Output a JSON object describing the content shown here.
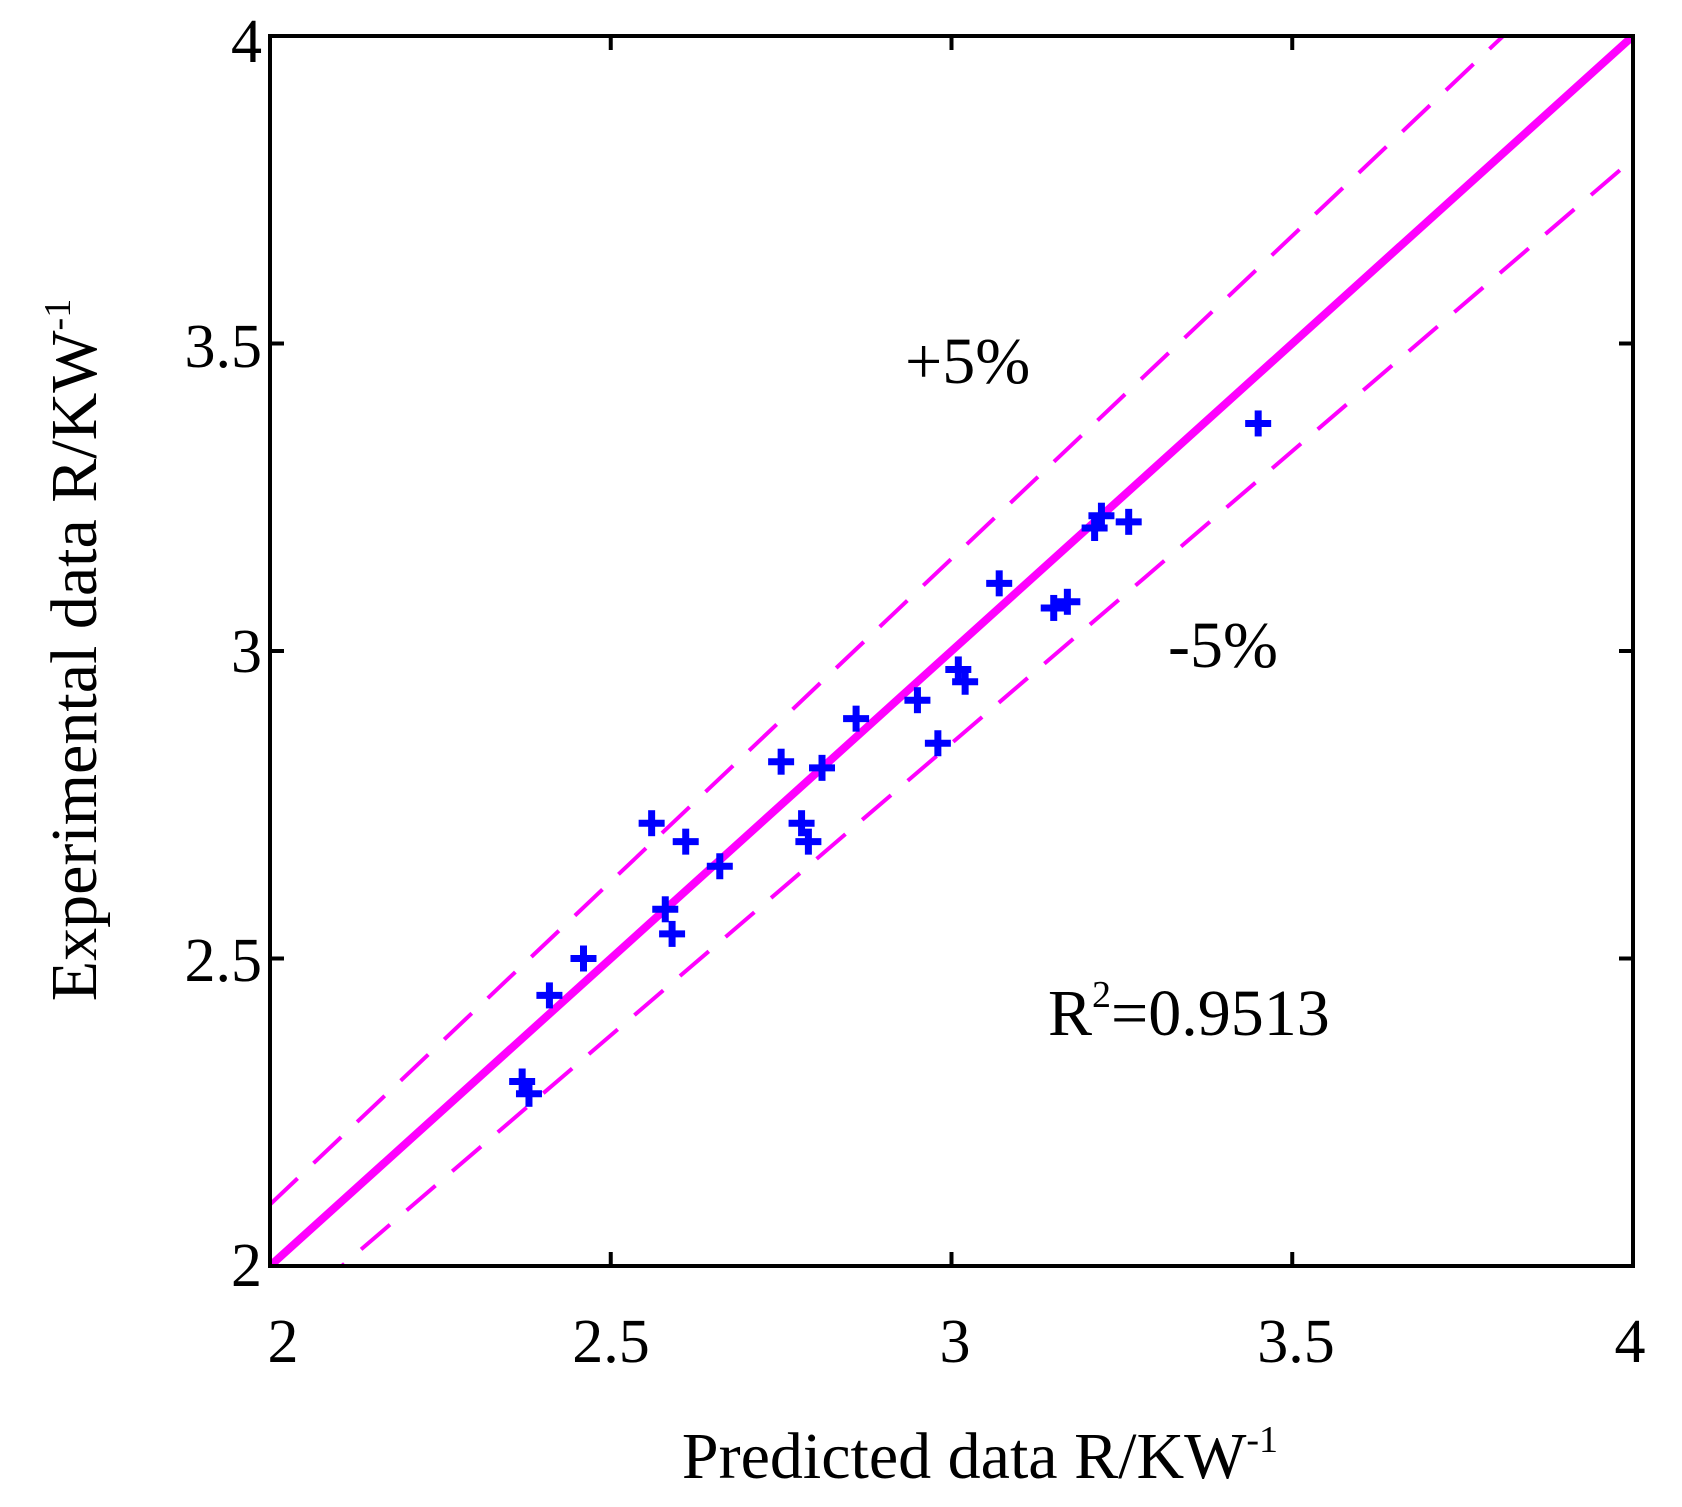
{
  "chart_data": {
    "type": "scatter",
    "title": "",
    "xlabel": {
      "base": "Predicted data R/KW",
      "sup": "-1"
    },
    "ylabel": {
      "base": "Experimental data R/KW",
      "sup": "-1"
    },
    "xlim": [
      2,
      4
    ],
    "ylim": [
      2,
      4
    ],
    "xticks": [
      2,
      2.5,
      3,
      3.5,
      4
    ],
    "yticks": [
      2,
      2.5,
      3,
      3.5,
      4
    ],
    "xtick_labels": [
      "2",
      "2.5",
      "3",
      "3.5",
      "4"
    ],
    "ytick_labels": [
      "2",
      "2.5",
      "3",
      "3.5",
      "4"
    ],
    "grid": false,
    "colors": {
      "points": "#0000ff",
      "lines": "#ff00ff",
      "axes": "#000000"
    },
    "reference_lines": [
      {
        "name": "y = x",
        "slope": 1.0,
        "style": "solid"
      },
      {
        "name": "+5%",
        "slope": 1.05,
        "style": "dashed"
      },
      {
        "name": "-5%",
        "slope": 0.95,
        "style": "dashed"
      }
    ],
    "annotations": {
      "plus5": "+5%",
      "minus5": "-5%",
      "r2_base": "R",
      "r2_sup": "2",
      "r2_value": "=0.9513"
    },
    "series": [
      {
        "name": "data",
        "marker": "+",
        "points": [
          [
            2.37,
            2.3
          ],
          [
            2.38,
            2.28
          ],
          [
            2.41,
            2.44
          ],
          [
            2.46,
            2.5
          ],
          [
            2.56,
            2.72
          ],
          [
            2.58,
            2.58
          ],
          [
            2.59,
            2.54
          ],
          [
            2.61,
            2.69
          ],
          [
            2.66,
            2.65
          ],
          [
            2.75,
            2.82
          ],
          [
            2.78,
            2.72
          ],
          [
            2.79,
            2.69
          ],
          [
            2.81,
            2.81
          ],
          [
            2.86,
            2.89
          ],
          [
            2.95,
            2.92
          ],
          [
            2.98,
            2.85
          ],
          [
            3.01,
            2.97
          ],
          [
            3.02,
            2.95
          ],
          [
            3.07,
            3.11
          ],
          [
            3.15,
            3.07
          ],
          [
            3.17,
            3.08
          ],
          [
            3.21,
            3.2
          ],
          [
            3.22,
            3.22
          ],
          [
            3.26,
            3.21
          ],
          [
            3.45,
            3.37
          ]
        ]
      }
    ]
  }
}
